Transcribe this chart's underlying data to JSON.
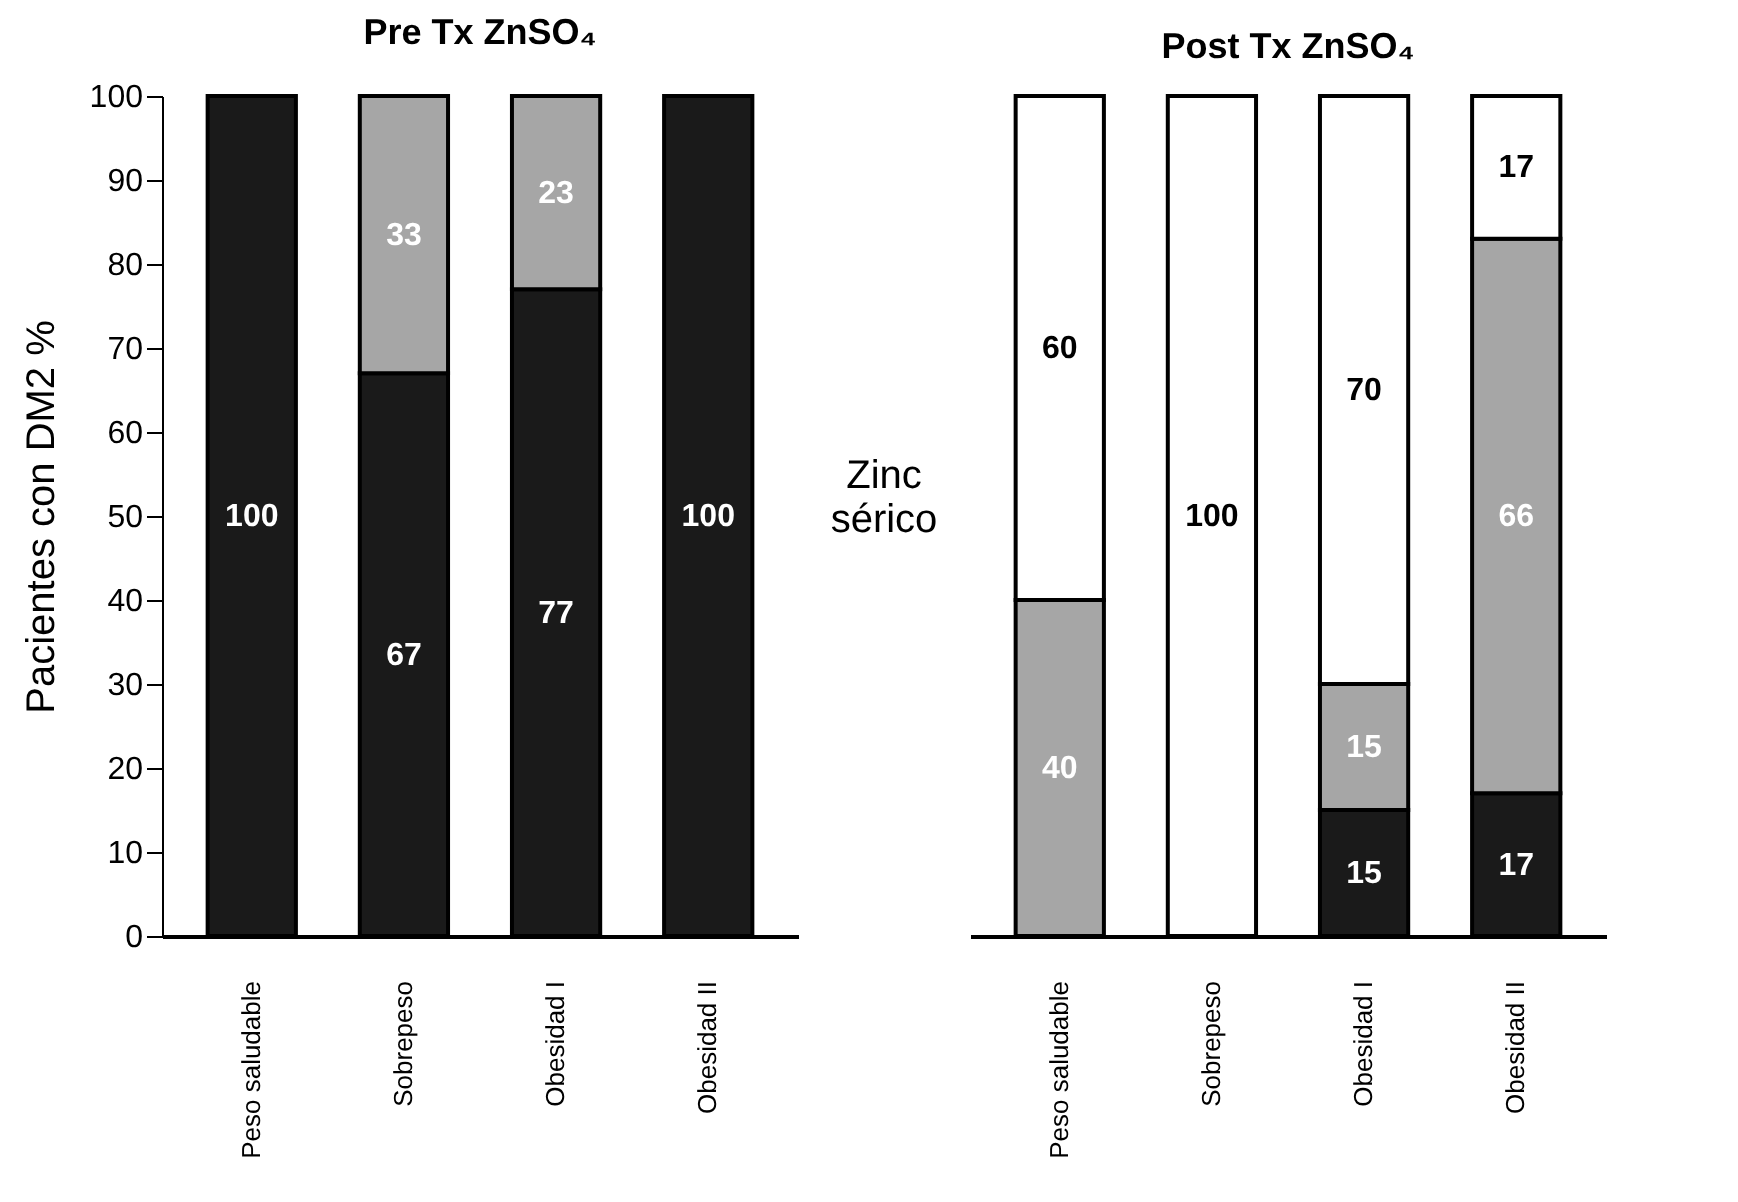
{
  "chart_data": [
    {
      "type": "bar",
      "title": "Pre Tx ZnSO₄",
      "ylabel": "Pacientes con DM2 %",
      "categories": [
        "Peso saludable",
        "Sobrepeso",
        "Obesidad I",
        "Obesidad II"
      ],
      "stacked": true,
      "data_labels": true,
      "ylim": [
        0,
        100
      ],
      "yticks": [
        0,
        10,
        20,
        30,
        40,
        50,
        60,
        70,
        80,
        90,
        100
      ],
      "series": [
        {
          "color": "#1a1a1a",
          "values": [
            100,
            67,
            77,
            100
          ]
        },
        {
          "color": "#a6a6a6",
          "values": [
            null,
            33,
            23,
            null
          ]
        }
      ]
    },
    {
      "type": "bar",
      "title": "Post Tx ZnSO₄",
      "annotations": [
        "Zinc sérico"
      ],
      "categories": [
        "Peso saludable",
        "Sobrepeso",
        "Obesidad I",
        "Obesidad II"
      ],
      "stacked": true,
      "data_labels": true,
      "ylim": [
        0,
        100
      ],
      "yticks": [
        0,
        10,
        20,
        30,
        40,
        50,
        60,
        70,
        80,
        90,
        100
      ],
      "tick_labels": "x",
      "series": [
        {
          "color": "#1a1a1a",
          "values": [
            null,
            null,
            15,
            17
          ]
        },
        {
          "color": "#a6a6a6",
          "values": [
            40,
            null,
            15,
            66
          ]
        },
        {
          "color": "#ffffff",
          "values": [
            60,
            100,
            70,
            17
          ]
        }
      ]
    }
  ]
}
